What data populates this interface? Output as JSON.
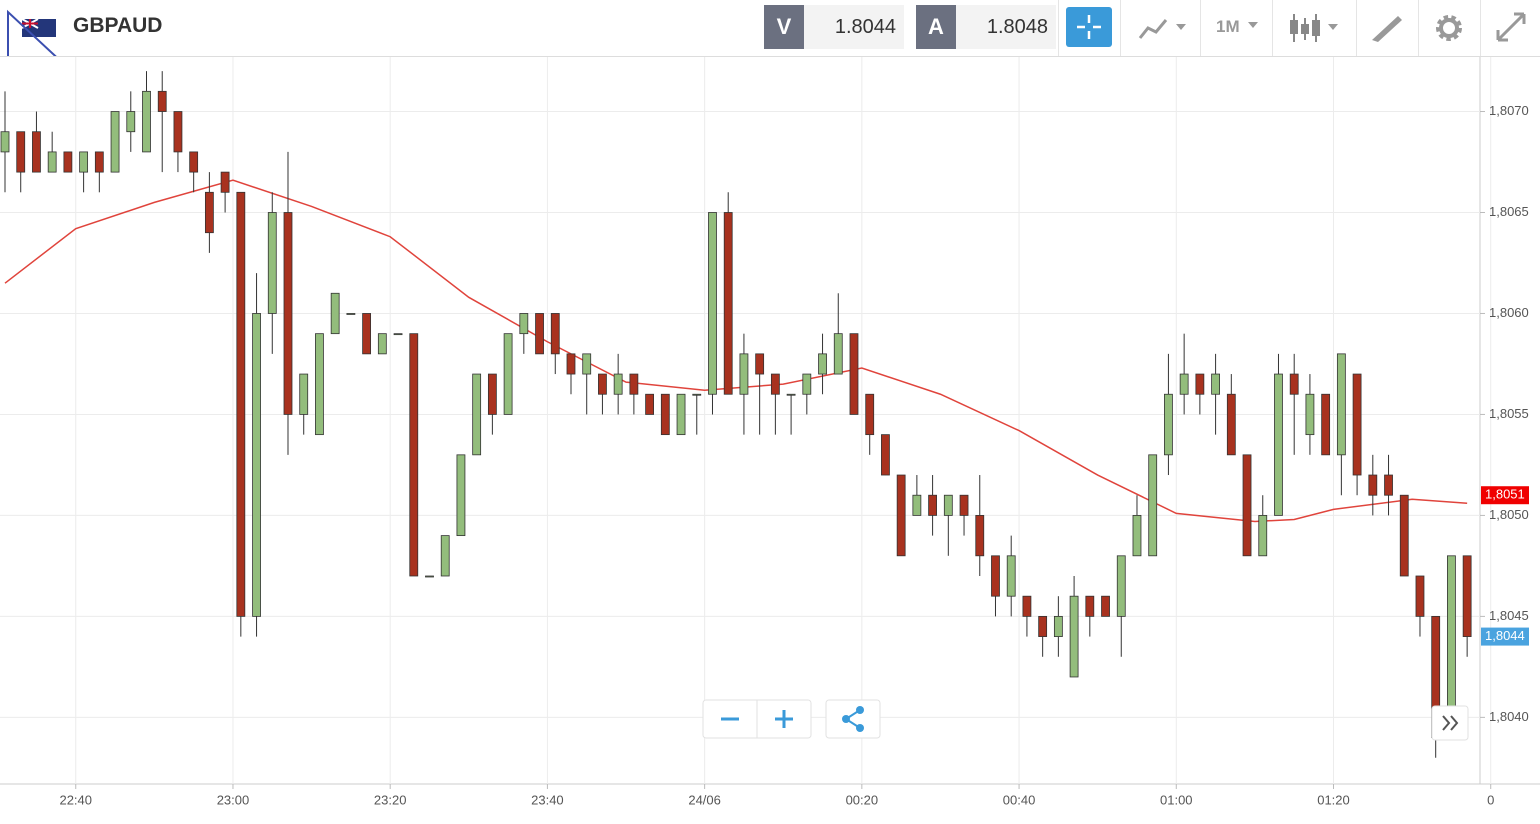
{
  "toolbar": {
    "symbol": "GBPAUD",
    "sell_label": "V",
    "sell_price": 1.8044,
    "buy_label": "A",
    "buy_price": 1.8048,
    "timeframe": "1M"
  },
  "chart_data": {
    "type": "candlestick",
    "x": [
      "22:31",
      "22:33",
      "22:35",
      "22:37",
      "22:39",
      "22:41",
      "22:43",
      "22:45",
      "22:47",
      "22:49",
      "22:51",
      "22:53",
      "22:55",
      "22:57",
      "22:59",
      "23:01",
      "23:03",
      "23:05",
      "23:07",
      "23:09",
      "23:11",
      "23:13",
      "23:15",
      "23:17",
      "23:19",
      "23:21",
      "23:23",
      "23:25",
      "23:27",
      "23:29",
      "23:31",
      "23:33",
      "23:35",
      "23:37",
      "23:39",
      "23:41",
      "23:43",
      "23:45",
      "23:47",
      "23:49",
      "23:51",
      "23:53",
      "23:55",
      "23:57",
      "23:59",
      "00:01",
      "00:03",
      "00:05",
      "00:07",
      "00:09",
      "00:11",
      "00:13",
      "00:15",
      "00:17",
      "00:19",
      "00:21",
      "00:23",
      "00:25",
      "00:27",
      "00:29",
      "00:31",
      "00:33",
      "00:35",
      "00:37",
      "00:39",
      "00:41",
      "00:43",
      "00:45",
      "00:47",
      "00:49",
      "00:51",
      "00:53",
      "00:55",
      "00:57",
      "00:59",
      "01:01",
      "01:03",
      "01:05",
      "01:07",
      "01:09",
      "01:11",
      "01:13",
      "01:15",
      "01:17",
      "01:19",
      "01:21",
      "01:23",
      "01:25",
      "01:27",
      "01:29",
      "01:31",
      "01:33",
      "01:35",
      "01:37"
    ],
    "open": [
      1.8068,
      1.8069,
      1.8069,
      1.8067,
      1.8068,
      1.8067,
      1.8068,
      1.8067,
      1.8069,
      1.8068,
      1.8071,
      1.807,
      1.8068,
      1.8066,
      1.8067,
      1.8066,
      1.8045,
      1.806,
      1.8065,
      1.8055,
      1.8054,
      1.8059,
      1.806,
      1.806,
      1.8058,
      1.8059,
      1.8059,
      1.8047,
      1.8047,
      1.8049,
      1.8053,
      1.8057,
      1.8055,
      1.8059,
      1.806,
      1.806,
      1.8058,
      1.8057,
      1.8057,
      1.8056,
      1.8057,
      1.8056,
      1.8056,
      1.8054,
      1.8056,
      1.8056,
      1.8065,
      1.8056,
      1.8058,
      1.8057,
      1.8056,
      1.8056,
      1.8057,
      1.8057,
      1.8059,
      1.8056,
      1.8054,
      1.8052,
      1.805,
      1.8051,
      1.805,
      1.8051,
      1.805,
      1.8048,
      1.8046,
      1.8046,
      1.8045,
      1.8044,
      1.8042,
      1.8046,
      1.8046,
      1.8045,
      1.8048,
      1.8048,
      1.8053,
      1.8056,
      1.8057,
      1.8056,
      1.8056,
      1.8053,
      1.8048,
      1.805,
      1.8057,
      1.8054,
      1.8056,
      1.8053,
      1.8057,
      1.8052,
      1.8052,
      1.8051,
      1.8047,
      1.8045,
      1.804,
      1.8048
    ],
    "high": [
      1.8071,
      1.8069,
      1.807,
      1.8069,
      1.8068,
      1.8068,
      1.8068,
      1.807,
      1.8071,
      1.8072,
      1.8072,
      1.807,
      1.8068,
      1.8067,
      1.8067,
      1.8066,
      1.8062,
      1.8066,
      1.8068,
      1.8057,
      1.8059,
      1.8061,
      1.806,
      1.806,
      1.8059,
      1.8059,
      1.8059,
      1.8047,
      1.8049,
      1.8053,
      1.8057,
      1.8057,
      1.8059,
      1.806,
      1.806,
      1.806,
      1.8058,
      1.8058,
      1.8057,
      1.8058,
      1.8057,
      1.8056,
      1.8056,
      1.8056,
      1.8056,
      1.8065,
      1.8066,
      1.8059,
      1.8058,
      1.8057,
      1.8056,
      1.8057,
      1.8059,
      1.8061,
      1.8059,
      1.8056,
      1.8054,
      1.8052,
      1.8052,
      1.8052,
      1.8051,
      1.8051,
      1.8052,
      1.8048,
      1.8049,
      1.8046,
      1.8045,
      1.8046,
      1.8047,
      1.8046,
      1.8046,
      1.8048,
      1.8051,
      1.8053,
      1.8058,
      1.8059,
      1.8057,
      1.8058,
      1.8057,
      1.8053,
      1.8051,
      1.8058,
      1.8058,
      1.8057,
      1.8056,
      1.8058,
      1.8057,
      1.8053,
      1.8053,
      1.8051,
      1.8047,
      1.8045,
      1.8048,
      1.8048
    ],
    "low": [
      1.8066,
      1.8066,
      1.8067,
      1.8067,
      1.8067,
      1.8066,
      1.8066,
      1.8067,
      1.8068,
      1.8068,
      1.8067,
      1.8067,
      1.8066,
      1.8063,
      1.8065,
      1.8044,
      1.8044,
      1.8058,
      1.8053,
      1.8054,
      1.8054,
      1.8059,
      1.806,
      1.8058,
      1.8058,
      1.8059,
      1.8047,
      1.8047,
      1.8047,
      1.8049,
      1.8053,
      1.8054,
      1.8055,
      1.8058,
      1.8058,
      1.8057,
      1.8056,
      1.8055,
      1.8055,
      1.8055,
      1.8055,
      1.8055,
      1.8054,
      1.8054,
      1.8054,
      1.8055,
      1.8056,
      1.8054,
      1.8054,
      1.8054,
      1.8054,
      1.8055,
      1.8056,
      1.8057,
      1.8055,
      1.8053,
      1.8052,
      1.8048,
      1.805,
      1.8049,
      1.8048,
      1.8049,
      1.8047,
      1.8045,
      1.8045,
      1.8044,
      1.8043,
      1.8043,
      1.8042,
      1.8044,
      1.8045,
      1.8043,
      1.8048,
      1.8048,
      1.8052,
      1.8055,
      1.8055,
      1.8054,
      1.8053,
      1.8048,
      1.8048,
      1.805,
      1.8053,
      1.8053,
      1.8053,
      1.8051,
      1.8051,
      1.805,
      1.805,
      1.8047,
      1.8044,
      1.8038,
      1.804,
      1.8043
    ],
    "close": [
      1.8069,
      1.8067,
      1.8067,
      1.8068,
      1.8067,
      1.8068,
      1.8067,
      1.807,
      1.807,
      1.8071,
      1.807,
      1.8068,
      1.8067,
      1.8064,
      1.8066,
      1.8045,
      1.806,
      1.8065,
      1.8055,
      1.8057,
      1.8059,
      1.8061,
      1.806,
      1.8058,
      1.8059,
      1.8059,
      1.8047,
      1.8047,
      1.8049,
      1.8053,
      1.8057,
      1.8055,
      1.8059,
      1.806,
      1.8058,
      1.8058,
      1.8057,
      1.8058,
      1.8056,
      1.8057,
      1.8056,
      1.8055,
      1.8054,
      1.8056,
      1.8056,
      1.8065,
      1.8056,
      1.8058,
      1.8057,
      1.8056,
      1.8056,
      1.8057,
      1.8058,
      1.8059,
      1.8055,
      1.8054,
      1.8052,
      1.8048,
      1.8051,
      1.805,
      1.8051,
      1.805,
      1.8048,
      1.8046,
      1.8048,
      1.8045,
      1.8044,
      1.8045,
      1.8046,
      1.8045,
      1.8045,
      1.8048,
      1.805,
      1.8053,
      1.8056,
      1.8057,
      1.8056,
      1.8057,
      1.8053,
      1.8048,
      1.805,
      1.8057,
      1.8056,
      1.8056,
      1.8053,
      1.8058,
      1.8052,
      1.8051,
      1.8051,
      1.8047,
      1.8045,
      1.8039,
      1.8048,
      1.8044
    ],
    "up_color": "#93bd7c",
    "down_color": "#a8321f",
    "moving_average": {
      "x": [
        "22:31",
        "22:40",
        "22:50",
        "23:00",
        "23:10",
        "23:20",
        "23:30",
        "23:40",
        "23:50",
        "00:00",
        "00:10",
        "00:20",
        "00:30",
        "00:40",
        "00:50",
        "01:00",
        "01:10",
        "01:15",
        "01:20",
        "01:30",
        "01:37"
      ],
      "values": [
        1.80615,
        1.80642,
        1.80655,
        1.80666,
        1.80653,
        1.80638,
        1.80608,
        1.80586,
        1.80566,
        1.80562,
        1.80565,
        1.80573,
        1.8056,
        1.80542,
        1.8052,
        1.80501,
        1.80497,
        1.80498,
        1.80503,
        1.80508,
        1.80506
      ],
      "color": "#e0443c"
    },
    "price_labels": [
      {
        "value": 1.8051,
        "label": "1,8051",
        "color": "#f00000"
      },
      {
        "value": 1.8044,
        "label": "1,8044",
        "color": "#4aa3df"
      }
    ],
    "xlim": [
      "22:31",
      "01:38"
    ],
    "xticks": [
      "22:40",
      "23:00",
      "23:20",
      "23:40",
      {
        "value": "00:00",
        "label": "24/06"
      },
      "00:20",
      "00:40",
      "01:00",
      "01:20",
      {
        "value": "01:40",
        "label": "0"
      }
    ],
    "ylim": [
      1.80367,
      1.80727
    ],
    "yticks": [
      {
        "value": 1.804,
        "label": "1,8040"
      },
      {
        "value": 1.8045,
        "label": "1,8045"
      },
      {
        "value": 1.805,
        "label": "1,8050"
      },
      {
        "value": 1.8055,
        "label": "1,8055"
      },
      {
        "value": 1.806,
        "label": "1,8060"
      },
      {
        "value": 1.8065,
        "label": "1,8065"
      },
      {
        "value": 1.807,
        "label": "1,8070"
      }
    ],
    "grid": true
  }
}
